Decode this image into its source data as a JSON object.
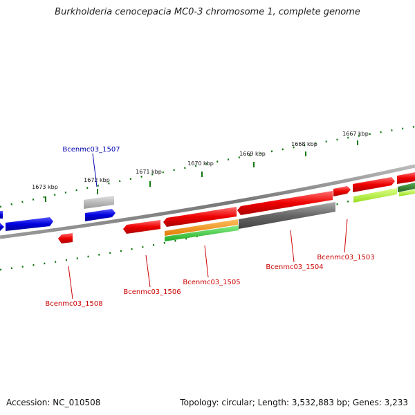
{
  "title": "Burkholderia cenocepacia MC0-3 chromosome 1, complete genome",
  "footer": {
    "accession": "Accession: NC_010508",
    "stats": "Topology: circular; Length: 3,532,883 bp; Genes: 3,233"
  },
  "ticks": [
    "1667 kbp",
    "1668 kbp",
    "1669 kbp",
    "1670 kbp",
    "1671 kbp",
    "1672 kbp",
    "1673 kbp"
  ],
  "genes": {
    "g1507": "Bcenmc03_1507",
    "g1508": "Bcenmc03_1508",
    "g1506": "Bcenmc03_1506",
    "g1505": "Bcenmc03_1505",
    "g1504": "Bcenmc03_1504",
    "g1503": "Bcenmc03_1503"
  },
  "colors": {
    "forward_gene": "#ee0000",
    "reverse_gene": "#0000dd",
    "highlight_label": "#0000aa",
    "gene_label": "#cc0000",
    "tick": "#116611",
    "backbone": "#888888"
  }
}
